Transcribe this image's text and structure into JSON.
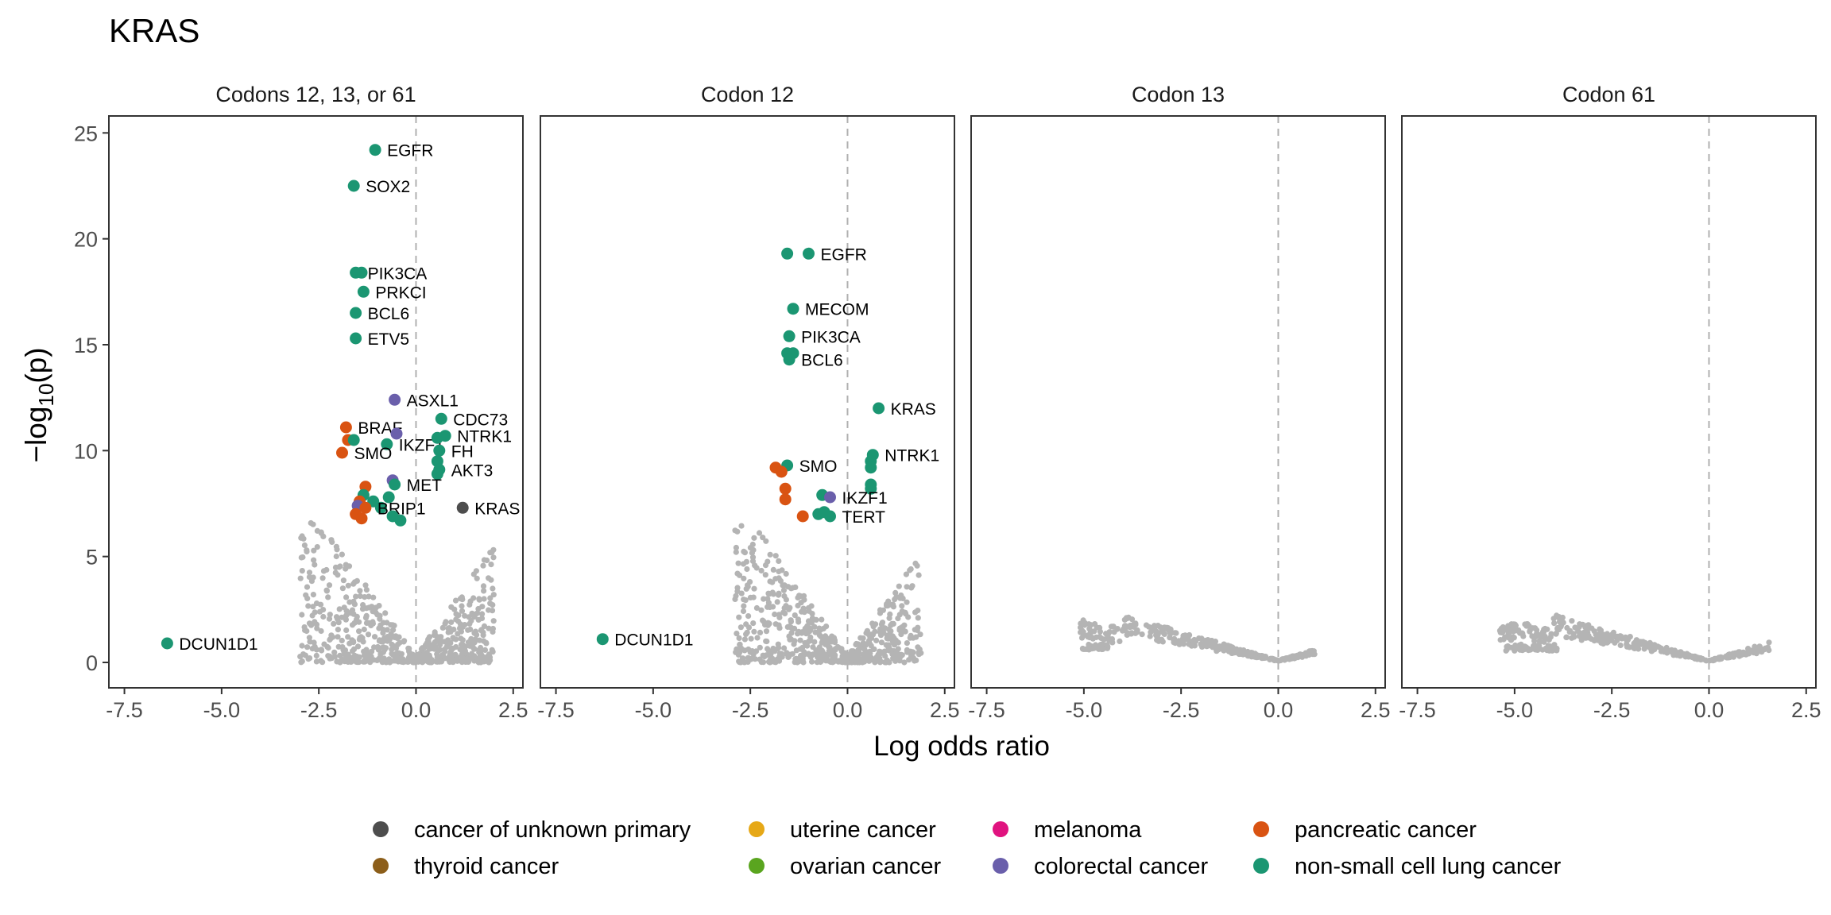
{
  "title": "KRAS",
  "xlabel": "Log odds ratio",
  "ylabel_main": "−log",
  "ylabel_sub": "10",
  "ylabel_tail": "(p)",
  "legend": [
    {
      "label": "cancer of unknown primary",
      "color": "#4d4d4d"
    },
    {
      "label": "thyroid cancer",
      "color": "#8c5e1a"
    },
    {
      "label": "uterine cancer",
      "color": "#e6a817"
    },
    {
      "label": "ovarian cancer",
      "color": "#5aa51f"
    },
    {
      "label": "melanoma",
      "color": "#e0137f"
    },
    {
      "label": "colorectal cancer",
      "color": "#6a5fab"
    },
    {
      "label": "pancreatic cancer",
      "color": "#d95312"
    },
    {
      "label": "non-small cell lung cancer",
      "color": "#1b9672"
    }
  ],
  "colors": {
    "background_points": "#b4b4b4",
    "zero_line": "#b0b0b0",
    "frame": "#333333"
  },
  "chart_data": {
    "type": "scatter",
    "xlim": [
      -7.9,
      2.75
    ],
    "ylim": [
      -1.2,
      25.8
    ],
    "xticks": [
      -7.5,
      -5.0,
      -2.5,
      0.0,
      2.5
    ],
    "xtick_labels": [
      "-7.5",
      "-5.0",
      "-2.5",
      "0.0",
      "2.5"
    ],
    "yticks": [
      0,
      5,
      10,
      15,
      20,
      25
    ],
    "ytick_labels": [
      "0",
      "5",
      "10",
      "15",
      "20",
      "25"
    ],
    "panels": [
      {
        "title": "Codons 12, 13, or 61",
        "highlighted_points": [
          {
            "x": -1.05,
            "y": 24.2,
            "cancer": "non-small cell lung cancer",
            "label": "EGFR"
          },
          {
            "x": -1.6,
            "y": 22.5,
            "cancer": "non-small cell lung cancer",
            "label": "SOX2"
          },
          {
            "x": -1.55,
            "y": 18.4,
            "cancer": "non-small cell lung cancer",
            "label": "PIK3CA"
          },
          {
            "x": -1.4,
            "y": 18.4,
            "cancer": "non-small cell lung cancer",
            "label": ""
          },
          {
            "x": -1.35,
            "y": 17.5,
            "cancer": "non-small cell lung cancer",
            "label": "PRKCI"
          },
          {
            "x": -1.55,
            "y": 16.5,
            "cancer": "non-small cell lung cancer",
            "label": "BCL6"
          },
          {
            "x": -1.55,
            "y": 15.3,
            "cancer": "non-small cell lung cancer",
            "label": "ETV5"
          },
          {
            "x": -0.55,
            "y": 12.4,
            "cancer": "colorectal cancer",
            "label": "ASXL1"
          },
          {
            "x": 0.65,
            "y": 11.5,
            "cancer": "non-small cell lung cancer",
            "label": "CDC73"
          },
          {
            "x": -1.8,
            "y": 11.1,
            "cancer": "pancreatic cancer",
            "label": "BRAF"
          },
          {
            "x": -1.75,
            "y": 10.5,
            "cancer": "pancreatic cancer",
            "label": ""
          },
          {
            "x": -1.6,
            "y": 10.5,
            "cancer": "non-small cell lung cancer",
            "label": ""
          },
          {
            "x": -0.5,
            "y": 10.8,
            "cancer": "colorectal cancer",
            "label": ""
          },
          {
            "x": -0.75,
            "y": 10.3,
            "cancer": "non-small cell lung cancer",
            "label": "IKZF1"
          },
          {
            "x": 0.75,
            "y": 10.7,
            "cancer": "non-small cell lung cancer",
            "label": "NTRK1"
          },
          {
            "x": 0.55,
            "y": 10.6,
            "cancer": "non-small cell lung cancer",
            "label": ""
          },
          {
            "x": -1.9,
            "y": 9.9,
            "cancer": "pancreatic cancer",
            "label": "SMO"
          },
          {
            "x": 0.6,
            "y": 10.0,
            "cancer": "non-small cell lung cancer",
            "label": "FH"
          },
          {
            "x": 0.55,
            "y": 9.5,
            "cancer": "non-small cell lung cancer",
            "label": ""
          },
          {
            "x": 0.6,
            "y": 9.1,
            "cancer": "non-small cell lung cancer",
            "label": "AKT3"
          },
          {
            "x": 0.55,
            "y": 8.9,
            "cancer": "non-small cell lung cancer",
            "label": ""
          },
          {
            "x": -0.6,
            "y": 8.6,
            "cancer": "colorectal cancer",
            "label": ""
          },
          {
            "x": -0.55,
            "y": 8.4,
            "cancer": "non-small cell lung cancer",
            "label": "MET"
          },
          {
            "x": -1.3,
            "y": 8.3,
            "cancer": "pancreatic cancer",
            "label": ""
          },
          {
            "x": -1.35,
            "y": 7.9,
            "cancer": "non-small cell lung cancer",
            "label": ""
          },
          {
            "x": -1.1,
            "y": 7.6,
            "cancer": "non-small cell lung cancer",
            "label": ""
          },
          {
            "x": -0.7,
            "y": 7.8,
            "cancer": "non-small cell lung cancer",
            "label": ""
          },
          {
            "x": -0.9,
            "y": 7.3,
            "cancer": "non-small cell lung cancer",
            "label": ""
          },
          {
            "x": -1.45,
            "y": 7.6,
            "cancer": "pancreatic cancer",
            "label": ""
          },
          {
            "x": -1.5,
            "y": 7.4,
            "cancer": "colorectal cancer",
            "label": ""
          },
          {
            "x": -1.3,
            "y": 7.3,
            "cancer": "pancreatic cancer",
            "label": "BRIP1"
          },
          {
            "x": -1.55,
            "y": 7.0,
            "cancer": "pancreatic cancer",
            "label": ""
          },
          {
            "x": -1.4,
            "y": 6.8,
            "cancer": "pancreatic cancer",
            "label": ""
          },
          {
            "x": -0.6,
            "y": 6.9,
            "cancer": "non-small cell lung cancer",
            "label": ""
          },
          {
            "x": -0.4,
            "y": 6.7,
            "cancer": "non-small cell lung cancer",
            "label": ""
          },
          {
            "x": 1.2,
            "y": 7.3,
            "cancer": "cancer of unknown primary",
            "label": "KRAS"
          },
          {
            "x": -6.4,
            "y": 0.9,
            "cancer": "non-small cell lung cancer",
            "label": "DCUN1D1"
          }
        ],
        "background_cloud": {
          "x_range": [
            -3.0,
            2.0
          ],
          "y_max": 7.0
        }
      },
      {
        "title": "Codon 12",
        "highlighted_points": [
          {
            "x": -1.55,
            "y": 19.3,
            "cancer": "non-small cell lung cancer",
            "label": ""
          },
          {
            "x": -1.0,
            "y": 19.3,
            "cancer": "non-small cell lung cancer",
            "label": "EGFR"
          },
          {
            "x": -1.4,
            "y": 16.7,
            "cancer": "non-small cell lung cancer",
            "label": "MECOM"
          },
          {
            "x": -1.5,
            "y": 15.4,
            "cancer": "non-small cell lung cancer",
            "label": "PIK3CA"
          },
          {
            "x": -1.55,
            "y": 14.6,
            "cancer": "non-small cell lung cancer",
            "label": ""
          },
          {
            "x": -1.4,
            "y": 14.6,
            "cancer": "non-small cell lung cancer",
            "label": ""
          },
          {
            "x": -1.5,
            "y": 14.3,
            "cancer": "non-small cell lung cancer",
            "label": "BCL6"
          },
          {
            "x": 0.8,
            "y": 12.0,
            "cancer": "non-small cell lung cancer",
            "label": "KRAS"
          },
          {
            "x": 0.65,
            "y": 9.8,
            "cancer": "non-small cell lung cancer",
            "label": "NTRK1"
          },
          {
            "x": 0.6,
            "y": 9.5,
            "cancer": "non-small cell lung cancer",
            "label": ""
          },
          {
            "x": 0.6,
            "y": 9.2,
            "cancer": "non-small cell lung cancer",
            "label": ""
          },
          {
            "x": -1.55,
            "y": 9.3,
            "cancer": "non-small cell lung cancer",
            "label": "SMO"
          },
          {
            "x": -1.85,
            "y": 9.2,
            "cancer": "pancreatic cancer",
            "label": ""
          },
          {
            "x": -1.7,
            "y": 9.0,
            "cancer": "pancreatic cancer",
            "label": ""
          },
          {
            "x": 0.6,
            "y": 8.4,
            "cancer": "non-small cell lung cancer",
            "label": ""
          },
          {
            "x": 0.6,
            "y": 8.2,
            "cancer": "non-small cell lung cancer",
            "label": ""
          },
          {
            "x": -1.6,
            "y": 8.2,
            "cancer": "pancreatic cancer",
            "label": ""
          },
          {
            "x": -0.65,
            "y": 7.9,
            "cancer": "non-small cell lung cancer",
            "label": ""
          },
          {
            "x": -0.45,
            "y": 7.8,
            "cancer": "colorectal cancer",
            "label": "IKZF1"
          },
          {
            "x": -1.6,
            "y": 7.7,
            "cancer": "pancreatic cancer",
            "label": ""
          },
          {
            "x": -0.75,
            "y": 7.0,
            "cancer": "non-small cell lung cancer",
            "label": ""
          },
          {
            "x": -0.6,
            "y": 7.1,
            "cancer": "non-small cell lung cancer",
            "label": ""
          },
          {
            "x": -0.45,
            "y": 6.9,
            "cancer": "non-small cell lung cancer",
            "label": "TERT"
          },
          {
            "x": -1.15,
            "y": 6.9,
            "cancer": "pancreatic cancer",
            "label": ""
          },
          {
            "x": -6.3,
            "y": 1.1,
            "cancer": "non-small cell lung cancer",
            "label": "DCUN1D1"
          }
        ],
        "background_cloud": {
          "x_range": [
            -2.9,
            1.9
          ],
          "y_max": 6.5
        }
      },
      {
        "title": "Codon 13",
        "highlighted_points": [],
        "background_cloud": {
          "x_range": [
            -5.1,
            0.95
          ],
          "y_max": 3.0
        }
      },
      {
        "title": "Codon 61",
        "highlighted_points": [],
        "background_cloud": {
          "x_range": [
            -5.4,
            1.55
          ],
          "y_max": 2.6
        }
      }
    ]
  }
}
